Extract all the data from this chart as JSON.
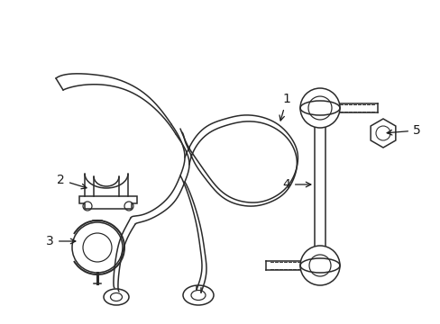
{
  "bg_color": "#ffffff",
  "line_color": "#2a2a2a",
  "lw": 1.1,
  "figsize": [
    4.89,
    3.6
  ],
  "dpi": 100
}
